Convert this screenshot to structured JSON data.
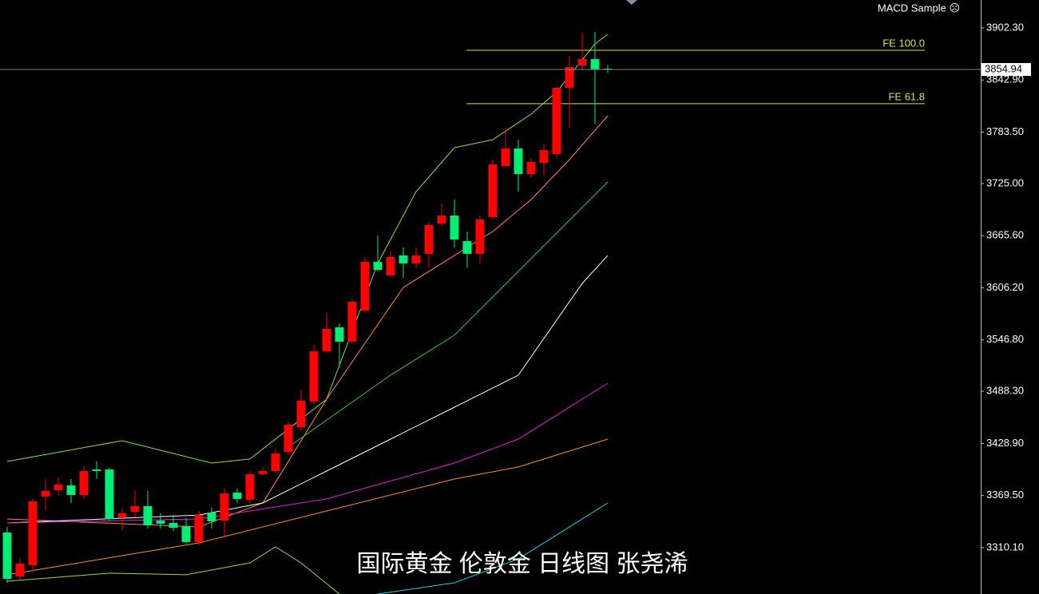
{
  "chart_data": {
    "type": "candlestick",
    "indicator": "MACD Sample ☹",
    "watermark": "国际黄金 伦敦金 日线图 张尧浠",
    "up_color": "#ff0000",
    "down_color": "#00ee76",
    "ylim": [
      3257.3,
      3934.1
    ],
    "yticks": [
      {
        "value": 3902.3,
        "label": "3902.30"
      },
      {
        "value": 3842.9,
        "label": "3842.90"
      },
      {
        "value": 3783.5,
        "label": "3783.50"
      },
      {
        "value": 3725.0,
        "label": "3725.00"
      },
      {
        "value": 3665.6,
        "label": "3665.60"
      },
      {
        "value": 3606.2,
        "label": "3606.20"
      },
      {
        "value": 3546.8,
        "label": "3546.80"
      },
      {
        "value": 3488.3,
        "label": "3488.30"
      },
      {
        "value": 3428.9,
        "label": "3428.90"
      },
      {
        "value": 3369.5,
        "label": "3369.50"
      },
      {
        "value": 3310.1,
        "label": "3310.10"
      }
    ],
    "last_price": 3854.94,
    "fibo_levels": [
      {
        "label": "FE 100.0",
        "value": 3876.8,
        "color": "#e0e040"
      },
      {
        "label": "FE 61.8",
        "value": 3815.9,
        "color": "#e0e040"
      }
    ],
    "open": [
      3327.4,
      3277.3,
      3290.1,
      3368.3,
      3375.6,
      3381.0,
      3370.1,
      3399.2,
      3399.2,
      3344.6,
      3351.0,
      3357.4,
      3341.0,
      3338.3,
      3334.6,
      3316.5,
      3350.0,
      3341.0,
      3372.8,
      3364.7,
      3393.8,
      3397.4,
      3419.3,
      3447.4,
      3476.6,
      3533.9,
      3561.2,
      3544.8,
      3580.3,
      3635.8,
      3620.3,
      3643.1,
      3633.9,
      3644.9,
      3679.4,
      3688.5,
      3659.4,
      3644.9,
      3686.7,
      3744.9,
      3764.9,
      3735.8,
      3748.6,
      3758.6,
      3834.1,
      3859.5,
      3866.8,
      3855.9
    ],
    "high": [
      3333.7,
      3297.3,
      3365.6,
      3388.3,
      3390.2,
      3388.3,
      3402.9,
      3408.4,
      3401.1,
      3355.6,
      3374.7,
      3374.7,
      3349.2,
      3347.3,
      3343.7,
      3351.9,
      3355.6,
      3377.4,
      3377.4,
      3397.4,
      3401.9,
      3422.9,
      3453.8,
      3490.2,
      3541.2,
      3577.5,
      3565.7,
      3593.0,
      3641.2,
      3665.7,
      3647.6,
      3652.1,
      3652.1,
      3681.3,
      3702.2,
      3706.7,
      3670.3,
      3688.5,
      3752.2,
      3788.6,
      3774.9,
      3754.0,
      3770.4,
      3835.9,
      3870.5,
      3895.9,
      3897.7,
      3860.0
    ],
    "low": [
      3270.0,
      3273.7,
      3282.8,
      3352.0,
      3370.1,
      3361.0,
      3365.6,
      3388.3,
      3341.0,
      3329.2,
      3344.6,
      3332.0,
      3332.0,
      3329.2,
      3314.6,
      3312.8,
      3332.0,
      3322.8,
      3361.0,
      3361.0,
      3392.0,
      3395.6,
      3415.6,
      3442.9,
      3473.8,
      3532.1,
      3515.7,
      3543.0,
      3577.5,
      3624.8,
      3618.5,
      3617.6,
      3629.4,
      3629.4,
      3676.7,
      3652.1,
      3629.4,
      3633.9,
      3684.9,
      3743.1,
      3715.8,
      3732.2,
      3734.0,
      3754.9,
      3788.6,
      3854.1,
      3793.1,
      3851.0
    ],
    "close": [
      3274.6,
      3291.9,
      3362.8,
      3374.7,
      3382.0,
      3370.1,
      3397.4,
      3397.4,
      3342.8,
      3349.2,
      3357.4,
      3335.5,
      3337.4,
      3332.8,
      3316.5,
      3347.3,
      3340.1,
      3372.0,
      3365.6,
      3393.8,
      3397.4,
      3417.4,
      3450.2,
      3477.5,
      3533.9,
      3559.3,
      3544.8,
      3590.3,
      3635.8,
      3626.7,
      3641.2,
      3633.9,
      3643.1,
      3677.6,
      3688.5,
      3661.2,
      3644.9,
      3684.0,
      3746.7,
      3764.9,
      3735.8,
      3749.5,
      3763.1,
      3834.1,
      3857.7,
      3866.8,
      3855.0,
      3854.94
    ],
    "lines": [
      {
        "color": "#90e040",
        "x": [
          0,
          9,
          16,
          19,
          25,
          29,
          32,
          35,
          38,
          41,
          43,
          46,
          47
        ],
        "values": [
          3408.3,
          3432.0,
          3406.5,
          3411.1,
          3479.3,
          3633.9,
          3715.8,
          3765.8,
          3774.9,
          3804.0,
          3829.5,
          3884.1,
          3895.0
        ]
      },
      {
        "color": "#90e040",
        "x": [
          0,
          8,
          14,
          19,
          21,
          23,
          26
        ],
        "values": [
          3271.9,
          3281.0,
          3279.2,
          3292.8,
          3311.0,
          3292.8,
          3257.3
        ]
      },
      {
        "color": "#ff8c40",
        "x": [
          0,
          15,
          20,
          25,
          28,
          31,
          35,
          38,
          41,
          44,
          47
        ],
        "values": [
          3342.8,
          3333.7,
          3361.0,
          3479.3,
          3543.0,
          3606.6,
          3643.1,
          3670.3,
          3706.7,
          3752.2,
          3802.2
        ]
      },
      {
        "color": "#ffffff",
        "x": [
          0,
          15,
          20,
          25,
          30,
          35,
          40,
          45,
          47
        ],
        "values": [
          3338.3,
          3347.3,
          3361.0,
          3397.4,
          3433.8,
          3470.2,
          3506.6,
          3611.2,
          3643.1
        ]
      },
      {
        "color": "#e020e0",
        "x": [
          0,
          15,
          25,
          35,
          40,
          45,
          47
        ],
        "values": [
          3338.3,
          3342.8,
          3365.6,
          3406.5,
          3433.8,
          3479.3,
          3497.5
        ]
      },
      {
        "color": "#ff9020",
        "x": [
          0,
          15,
          25,
          35,
          40,
          45,
          47
        ],
        "values": [
          3279.2,
          3315.5,
          3351.9,
          3388.3,
          3402.0,
          3424.7,
          3433.8
        ]
      },
      {
        "color": "#20d0e0",
        "x": [
          29,
          35,
          40,
          47
        ],
        "values": [
          3257.3,
          3270.0,
          3297.3,
          3361.0
        ]
      },
      {
        "color": "#40c040",
        "x": [
          22,
          30,
          35,
          40,
          45,
          47
        ],
        "values": [
          3424.7,
          3506.6,
          3552.1,
          3624.8,
          3697.6,
          3726.7
        ]
      }
    ]
  }
}
